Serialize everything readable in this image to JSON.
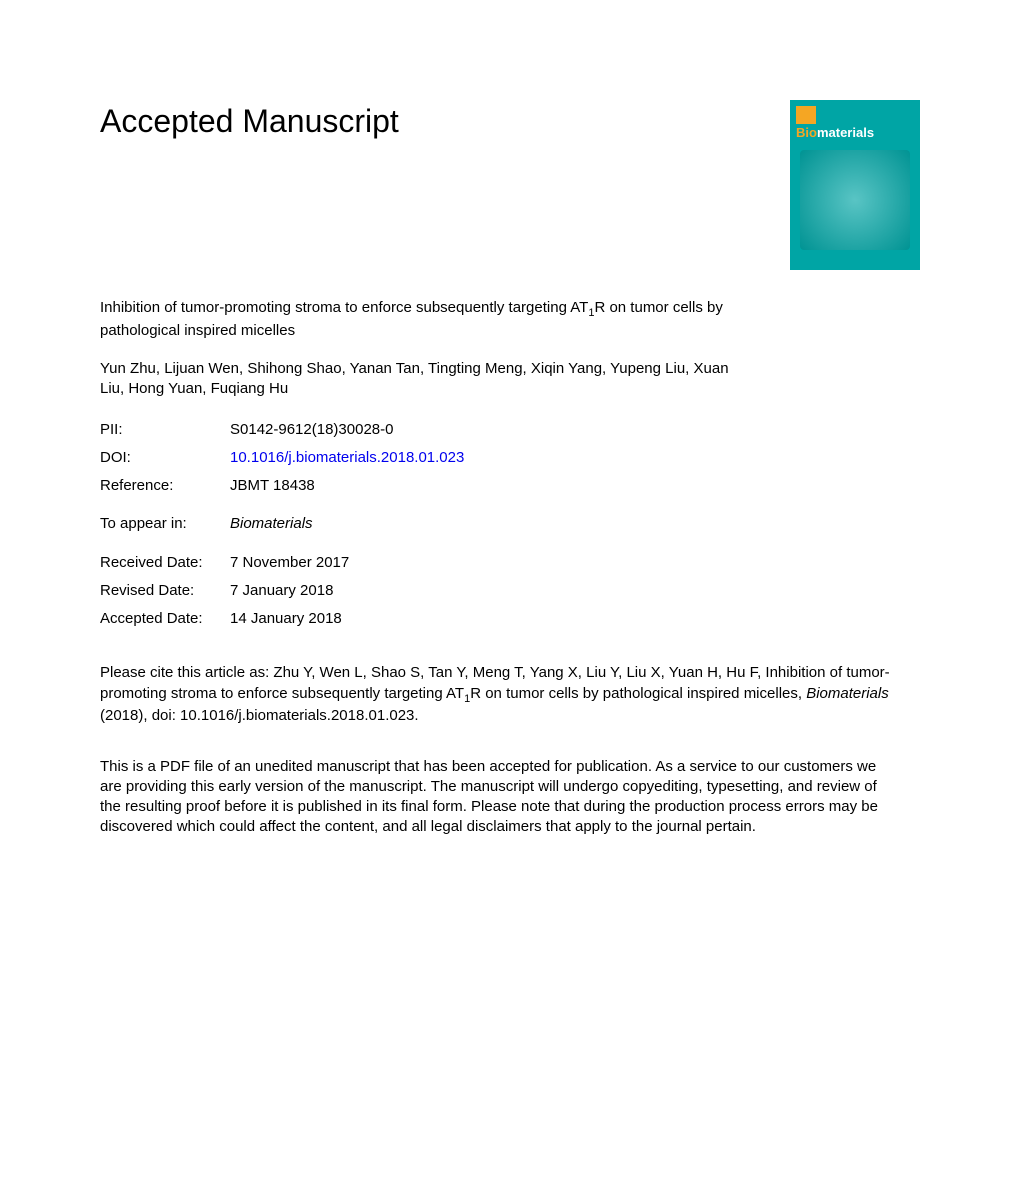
{
  "header": {
    "title": "Accepted Manuscript"
  },
  "cover": {
    "journal_prefix": "Bio",
    "journal_suffix": "materials",
    "background_color": "#00a5a5",
    "accent_color": "#f5a623"
  },
  "article": {
    "title_pre": "Inhibition of tumor-promoting stroma to enforce subsequently targeting AT",
    "title_sub": "1",
    "title_post": "R on tumor cells by pathological inspired micelles",
    "authors": "Yun Zhu, Lijuan Wen, Shihong Shao, Yanan Tan, Tingting Meng, Xiqin Yang, Yupeng Liu, Xuan Liu, Hong Yuan, Fuqiang Hu"
  },
  "meta": {
    "pii_label": "PII:",
    "pii_value": "S0142-9612(18)30028-0",
    "doi_label": "DOI:",
    "doi_value": "10.1016/j.biomaterials.2018.01.023",
    "reference_label": "Reference:",
    "reference_value": "JBMT 18438",
    "appear_label": "To appear in:",
    "appear_value": "Biomaterials",
    "received_label": "Received Date:",
    "received_value": "7 November 2017",
    "revised_label": "Revised Date:",
    "revised_value": "7 January 2018",
    "accepted_label": "Accepted Date:",
    "accepted_value": "14 January 2018"
  },
  "citation": {
    "pre": "Please cite this article as: Zhu Y, Wen L, Shao S, Tan Y, Meng T, Yang X, Liu Y, Liu X, Yuan H, Hu F, Inhibition of tumor-promoting stroma to enforce subsequently targeting AT",
    "sub": "1",
    "mid": "R on tumor cells by pathological inspired micelles, ",
    "journal": "Biomaterials",
    "post": " (2018), doi: 10.1016/j.biomaterials.2018.01.023."
  },
  "disclaimer": {
    "text": "This is a PDF file of an unedited manuscript that has been accepted for publication. As a service to our customers we are providing this early version of the manuscript. The manuscript will undergo copyediting, typesetting, and review of the resulting proof before it is published in its final form. Please note that during the production process errors may be discovered which could affect the content, and all legal disclaimers that apply to the journal pertain."
  }
}
